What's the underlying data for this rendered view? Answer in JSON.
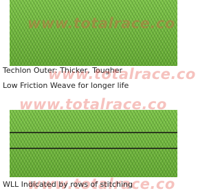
{
  "sections": [
    {
      "caption_lines": [
        "Techlon Outer: Thicker, Tougher",
        "Low Friction Weave for longer life"
      ]
    },
    {
      "caption_lines": [
        "WLL Indicated by rows of stitching"
      ]
    }
  ],
  "watermarks": [
    "www.totalrace.co",
    "www.totalrace.co",
    "www.totalrace.co",
    "www.totalrace.co"
  ]
}
